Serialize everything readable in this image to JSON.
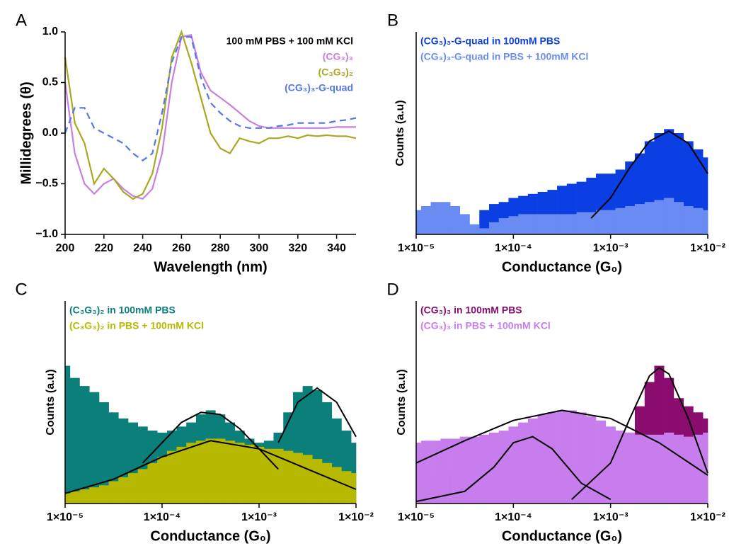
{
  "chart_data": [
    {
      "panel_label": "A",
      "type": "line",
      "annotation": "100 mM PBS + 100 mM KCl",
      "x_label": "Wavelength (nm)",
      "y_label": "Millidegrees (θ)",
      "legend": "upper right",
      "x": [
        200,
        205,
        210,
        215,
        220,
        225,
        230,
        235,
        240,
        245,
        250,
        255,
        260,
        265,
        270,
        275,
        280,
        285,
        290,
        295,
        300,
        305,
        310,
        315,
        320,
        325,
        330,
        335,
        340,
        345,
        350
      ],
      "series": [
        {
          "name": "(CG₃)₃",
          "color": "#c97fe0",
          "dash": false,
          "values": [
            0.5,
            -0.2,
            -0.5,
            -0.6,
            -0.5,
            -0.45,
            -0.55,
            -0.62,
            -0.65,
            -0.55,
            -0.2,
            0.5,
            0.95,
            0.97,
            0.6,
            0.42,
            0.35,
            0.28,
            0.2,
            0.12,
            0.07,
            0.05,
            0.05,
            0.05,
            0.05,
            0.05,
            0.05,
            0.05,
            0.06,
            0.06,
            0.06
          ]
        },
        {
          "name": "(C₃G₃)₂",
          "color": "#a8a824",
          "dash": false,
          "values": [
            0.75,
            0.1,
            -0.1,
            -0.5,
            -0.35,
            -0.45,
            -0.58,
            -0.65,
            -0.6,
            -0.4,
            0.05,
            0.75,
            1.0,
            0.7,
            0.35,
            0.0,
            -0.15,
            -0.2,
            -0.05,
            -0.08,
            -0.1,
            -0.05,
            -0.05,
            -0.03,
            -0.05,
            -0.02,
            -0.03,
            -0.02,
            -0.03,
            -0.03,
            -0.05
          ]
        },
        {
          "name": "(CG₃)₃-G-quad",
          "color": "#5577e6",
          "dash": true,
          "values": [
            0.0,
            0.25,
            0.25,
            0.05,
            0.0,
            -0.05,
            -0.1,
            -0.2,
            -0.27,
            -0.2,
            0.2,
            0.7,
            0.95,
            0.95,
            0.55,
            0.3,
            0.2,
            0.12,
            0.07,
            0.05,
            0.05,
            0.05,
            0.07,
            0.08,
            0.1,
            0.1,
            0.1,
            0.1,
            0.12,
            0.13,
            0.15
          ]
        }
      ],
      "xlim": [
        200,
        350
      ],
      "xticks": [
        200,
        220,
        240,
        260,
        280,
        300,
        320,
        340
      ],
      "ylim": [
        -1.0,
        1.0
      ],
      "yticks": [
        {
          "value": -1.0,
          "label": "−1.0"
        },
        {
          "value": -0.5,
          "label": "−0.5"
        },
        {
          "value": 0.0,
          "label": "0.0"
        },
        {
          "value": 0.5,
          "label": "0.5"
        },
        {
          "value": 1.0,
          "label": "1.0"
        }
      ]
    },
    {
      "panel_label": "B",
      "type": "area",
      "xscale": "log",
      "x_label": "Conductance (G₀)",
      "y_label": "Counts (a.u)",
      "legend": "upper left",
      "x": [
        1e-05,
        1.26e-05,
        1.58e-05,
        2e-05,
        2.51e-05,
        3.16e-05,
        3.98e-05,
        5.01e-05,
        6.31e-05,
        7.94e-05,
        0.0001,
        0.000126,
        0.000158,
        0.0002,
        0.000251,
        0.000316,
        0.000398,
        0.000501,
        0.000631,
        0.000794,
        0.001,
        0.00126,
        0.00158,
        0.002,
        0.00251,
        0.00316,
        0.00398,
        0.00501,
        0.00631,
        0.00794,
        0.01
      ],
      "series": [
        {
          "name": "(CG₃)₃-G-quad in 100mM PBS",
          "color": "#0b3fe3",
          "values": [
            4,
            4,
            4,
            4,
            4,
            4,
            4,
            12,
            15,
            16,
            18,
            19,
            20,
            21,
            22,
            24,
            25,
            26,
            28,
            30,
            30,
            32,
            36,
            40,
            46,
            50,
            52,
            50,
            46,
            42,
            38
          ]
        },
        {
          "name": "(CG₃)₃-G-quad in PBS + 100mM KCl",
          "color": "#6a8cf2",
          "values": [
            12,
            14,
            16,
            16,
            14,
            10,
            5,
            3,
            6,
            8,
            9,
            10,
            10,
            10,
            10,
            10,
            10,
            11,
            11,
            12,
            12,
            13,
            14,
            15,
            16,
            17,
            18,
            16,
            14,
            13,
            12
          ]
        }
      ],
      "fits": [
        {
          "color": "#000000",
          "x": [
            0.000631,
            0.001,
            0.00158,
            0.00251,
            0.00398,
            0.00631,
            0.01
          ],
          "values": [
            8,
            18,
            33,
            46,
            51,
            45,
            30
          ]
        }
      ],
      "xlim": [
        1e-05,
        0.01
      ],
      "xticks": [
        {
          "value": 1e-05,
          "label": "1×10⁻⁵"
        },
        {
          "value": 0.0001,
          "label": "1×10⁻⁴"
        },
        {
          "value": 0.001,
          "label": "1×10⁻³"
        },
        {
          "value": 0.01,
          "label": "1×10⁻²"
        }
      ],
      "ylim": [
        0,
        100
      ]
    },
    {
      "panel_label": "C",
      "type": "area",
      "xscale": "log",
      "x_label": "Conductance (G₀)",
      "y_label": "Counts (a.u)",
      "legend": "upper left",
      "x": [
        1e-05,
        1.26e-05,
        1.58e-05,
        2e-05,
        2.51e-05,
        3.16e-05,
        3.98e-05,
        5.01e-05,
        6.31e-05,
        7.94e-05,
        0.0001,
        0.000126,
        0.000158,
        0.0002,
        0.000251,
        0.000316,
        0.000398,
        0.000501,
        0.000631,
        0.000794,
        0.001,
        0.00126,
        0.00158,
        0.002,
        0.00251,
        0.00316,
        0.00398,
        0.00501,
        0.00631,
        0.00794,
        0.01
      ],
      "series": [
        {
          "name": "(C₃G₃)₂ in 100mM PBS",
          "color": "#0b7f7a",
          "values": [
            68,
            62,
            58,
            55,
            50,
            45,
            42,
            40,
            38,
            36,
            35,
            36,
            38,
            40,
            44,
            46,
            44,
            40,
            36,
            32,
            30,
            31,
            35,
            45,
            55,
            58,
            56,
            50,
            42,
            36,
            30
          ]
        },
        {
          "name": "(C₃G₃)₂ in PBS + 100mM KCl",
          "color": "#b7b800",
          "values": [
            5,
            6,
            7,
            8,
            9,
            11,
            13,
            15,
            17,
            20,
            23,
            26,
            28,
            30,
            31,
            32,
            32,
            31,
            30,
            29,
            28,
            27,
            27,
            26,
            25,
            24,
            22,
            20,
            18,
            16,
            15
          ]
        }
      ],
      "fits": [
        {
          "color": "#000000",
          "x": [
            1e-05,
            3.16e-05,
            0.0001,
            0.000316,
            0.001,
            0.00316,
            0.01
          ],
          "values": [
            5,
            12,
            23,
            31,
            27,
            17,
            7
          ]
        },
        {
          "color": "#000000",
          "x": [
            6.31e-05,
            0.0001,
            0.000158,
            0.000251,
            0.000398,
            0.000631,
            0.001,
            0.00158
          ],
          "values": [
            20,
            30,
            40,
            45,
            44,
            37,
            27,
            17
          ]
        },
        {
          "color": "#000000",
          "x": [
            0.00158,
            0.00251,
            0.00398,
            0.00631,
            0.01
          ],
          "values": [
            30,
            50,
            57,
            50,
            33
          ]
        }
      ],
      "xlim": [
        1e-05,
        0.01
      ],
      "xticks": [
        {
          "value": 1e-05,
          "label": "1×10⁻⁵"
        },
        {
          "value": 0.0001,
          "label": "1×10⁻⁴"
        },
        {
          "value": 0.001,
          "label": "1×10⁻³"
        },
        {
          "value": 0.01,
          "label": "1×10⁻²"
        }
      ],
      "ylim": [
        0,
        100
      ]
    },
    {
      "panel_label": "D",
      "type": "area",
      "xscale": "log",
      "x_label": "Conductance (G₀)",
      "y_label": "Counts (a.u)",
      "legend": "upper left",
      "x": [
        1e-05,
        1.26e-05,
        1.58e-05,
        2e-05,
        2.51e-05,
        3.16e-05,
        3.98e-05,
        5.01e-05,
        6.31e-05,
        7.94e-05,
        0.0001,
        0.000126,
        0.000158,
        0.0002,
        0.000251,
        0.000316,
        0.000398,
        0.000501,
        0.000631,
        0.000794,
        0.001,
        0.00126,
        0.00158,
        0.002,
        0.00251,
        0.00316,
        0.00398,
        0.00501,
        0.00631,
        0.00794,
        0.01
      ],
      "series": [
        {
          "name": "(CG₃)₃ in 100mM PBS",
          "color": "#8a0c6e",
          "values": [
            12,
            12,
            13,
            14,
            15,
            17,
            20,
            23,
            26,
            30,
            32,
            33,
            32,
            29,
            25,
            20,
            18,
            17,
            16,
            16,
            18,
            24,
            35,
            48,
            60,
            68,
            62,
            52,
            48,
            45,
            42
          ]
        },
        {
          "name": "(CG₃)₃ in PBS + 100mM KCl",
          "color": "#c87ded",
          "values": [
            30,
            31,
            31,
            32,
            32,
            33,
            33,
            34,
            35,
            36,
            38,
            40,
            42,
            44,
            45,
            46,
            46,
            45,
            43,
            41,
            38,
            36,
            35,
            34,
            34,
            34,
            35,
            34,
            33,
            34,
            35
          ]
        }
      ],
      "fits": [
        {
          "color": "#000000",
          "x": [
            1e-05,
            3.16e-05,
            0.0001,
            0.000316,
            0.001,
            0.00316,
            0.01
          ],
          "values": [
            20,
            31,
            41,
            46,
            42,
            30,
            14
          ]
        },
        {
          "color": "#000000",
          "x": [
            1e-05,
            3.16e-05,
            6.31e-05,
            0.0001,
            0.000158,
            0.000251,
            0.000501,
            0.001
          ],
          "values": [
            1,
            6,
            18,
            30,
            33,
            27,
            10,
            2
          ]
        },
        {
          "color": "#000000",
          "x": [
            0.000398,
            0.001,
            0.00158,
            0.00251,
            0.00316,
            0.00398,
            0.00631,
            0.01
          ],
          "values": [
            2,
            20,
            42,
            63,
            67,
            64,
            42,
            15
          ]
        }
      ],
      "xlim": [
        1e-05,
        0.01
      ],
      "xticks": [
        {
          "value": 1e-05,
          "label": "1×10⁻⁵"
        },
        {
          "value": 0.0001,
          "label": "1×10⁻⁴"
        },
        {
          "value": 0.001,
          "label": "1×10⁻³"
        },
        {
          "value": 0.01,
          "label": "1×10⁻²"
        }
      ],
      "ylim": [
        0,
        100
      ]
    }
  ]
}
